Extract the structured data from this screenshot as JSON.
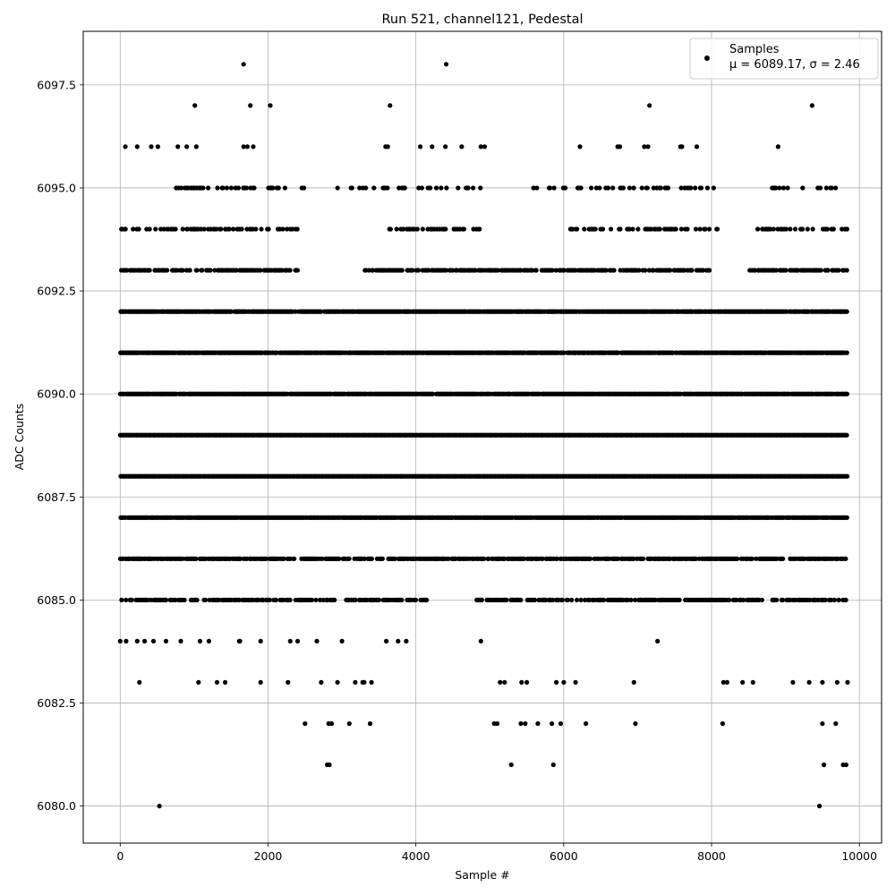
{
  "chart_data": {
    "type": "scatter",
    "title": "Run 521, channel121, Pedestal",
    "xlabel": "Sample #",
    "ylabel": "ADC Counts",
    "xlim": [
      -500,
      10300
    ],
    "ylim": [
      6079.1,
      6098.8
    ],
    "xticks": [
      0,
      2000,
      4000,
      6000,
      8000,
      10000
    ],
    "yticks": [
      6080.0,
      6082.5,
      6085.0,
      6087.5,
      6090.0,
      6092.5,
      6095.0,
      6097.5
    ],
    "xtick_labels": [
      "0",
      "2000",
      "4000",
      "6000",
      "8000",
      "10000"
    ],
    "ytick_labels": [
      "6080.0",
      "6082.5",
      "6085.0",
      "6087.5",
      "6090.0",
      "6092.5",
      "6095.0",
      "6097.5"
    ],
    "grid": true,
    "legend": {
      "placement": "top-right",
      "label": "Samples",
      "stats": "μ = 6089.17, σ = 2.46"
    },
    "marker_color": "#000000",
    "series": [
      {
        "name": "Samples",
        "points": [
          [
            0,
            6084
          ],
          [
            80,
            6084
          ],
          [
            230,
            6084
          ],
          [
            260,
            6083
          ],
          [
            330,
            6084
          ],
          [
            450,
            6084
          ],
          [
            530,
            6080
          ],
          [
            620,
            6084
          ],
          [
            820,
            6084
          ],
          [
            1060,
            6083
          ],
          [
            1080,
            6084
          ],
          [
            1200,
            6084
          ],
          [
            1420,
            6083
          ],
          [
            1620,
            6084
          ],
          [
            1900,
            6083
          ],
          [
            1900,
            6084
          ],
          [
            2270,
            6083
          ],
          [
            2300,
            6084
          ],
          [
            2400,
            6084
          ],
          [
            2500,
            6082
          ],
          [
            2660,
            6084
          ],
          [
            2720,
            6083
          ],
          [
            2800,
            6081
          ],
          [
            2830,
            6081
          ],
          [
            2820,
            6082
          ],
          [
            2860,
            6082
          ],
          [
            2940,
            6083
          ],
          [
            3000,
            6084
          ],
          [
            3100,
            6082
          ],
          [
            3180,
            6083
          ],
          [
            3300,
            6083
          ],
          [
            3380,
            6082
          ],
          [
            3400,
            6083
          ],
          [
            3600,
            6084
          ],
          [
            3760,
            6084
          ],
          [
            3870,
            6084
          ],
          [
            4880,
            6084
          ],
          [
            5060,
            6082
          ],
          [
            5100,
            6082
          ],
          [
            5140,
            6083
          ],
          [
            5200,
            6083
          ],
          [
            5290,
            6081
          ],
          [
            5420,
            6082
          ],
          [
            5480,
            6082
          ],
          [
            5430,
            6083
          ],
          [
            5500,
            6083
          ],
          [
            5650,
            6082
          ],
          [
            5860,
            6081
          ],
          [
            5840,
            6082
          ],
          [
            5900,
            6083
          ],
          [
            5960,
            6082
          ],
          [
            6000,
            6083
          ],
          [
            6160,
            6083
          ],
          [
            6300,
            6082
          ],
          [
            6950,
            6083
          ],
          [
            6970,
            6082
          ],
          [
            7270,
            6084
          ],
          [
            8150,
            6082
          ],
          [
            8160,
            6083
          ],
          [
            8210,
            6083
          ],
          [
            8420,
            6083
          ],
          [
            8560,
            6083
          ],
          [
            9100,
            6083
          ],
          [
            9320,
            6083
          ],
          [
            9460,
            6080
          ],
          [
            9500,
            6082
          ],
          [
            9520,
            6081
          ],
          [
            9500,
            6083
          ],
          [
            9680,
            6082
          ],
          [
            9700,
            6083
          ],
          [
            9780,
            6081
          ],
          [
            9820,
            6081
          ],
          [
            9840,
            6083
          ],
          [
            1670,
            6098
          ],
          [
            4410,
            6098
          ],
          [
            1010,
            6097
          ],
          [
            1760,
            6097
          ],
          [
            2030,
            6097
          ],
          [
            3650,
            6097
          ],
          [
            7160,
            6097
          ],
          [
            9360,
            6097
          ],
          [
            70,
            6096
          ],
          [
            230,
            6096
          ],
          [
            420,
            6096
          ],
          [
            510,
            6096
          ],
          [
            780,
            6096
          ],
          [
            900,
            6096
          ],
          [
            1030,
            6096
          ],
          [
            1670,
            6096
          ],
          [
            1720,
            6096
          ],
          [
            1800,
            6096
          ],
          [
            3590,
            6096
          ],
          [
            3620,
            6096
          ],
          [
            4060,
            6096
          ],
          [
            4220,
            6096
          ],
          [
            4400,
            6096
          ],
          [
            4620,
            6096
          ],
          [
            4880,
            6096
          ],
          [
            6220,
            6096
          ],
          [
            6730,
            6096
          ],
          [
            6760,
            6096
          ],
          [
            7090,
            6096
          ],
          [
            7140,
            6096
          ],
          [
            7580,
            6096
          ],
          [
            7600,
            6096
          ],
          [
            7800,
            6096
          ],
          [
            8900,
            6096
          ],
          [
            1310,
            6083
          ],
          [
            3280,
            6083
          ],
          [
            1610,
            6084
          ],
          [
            4930,
            6096
          ],
          [
            8870,
            6095
          ],
          [
            8850,
            6095
          ]
        ]
      }
    ]
  }
}
